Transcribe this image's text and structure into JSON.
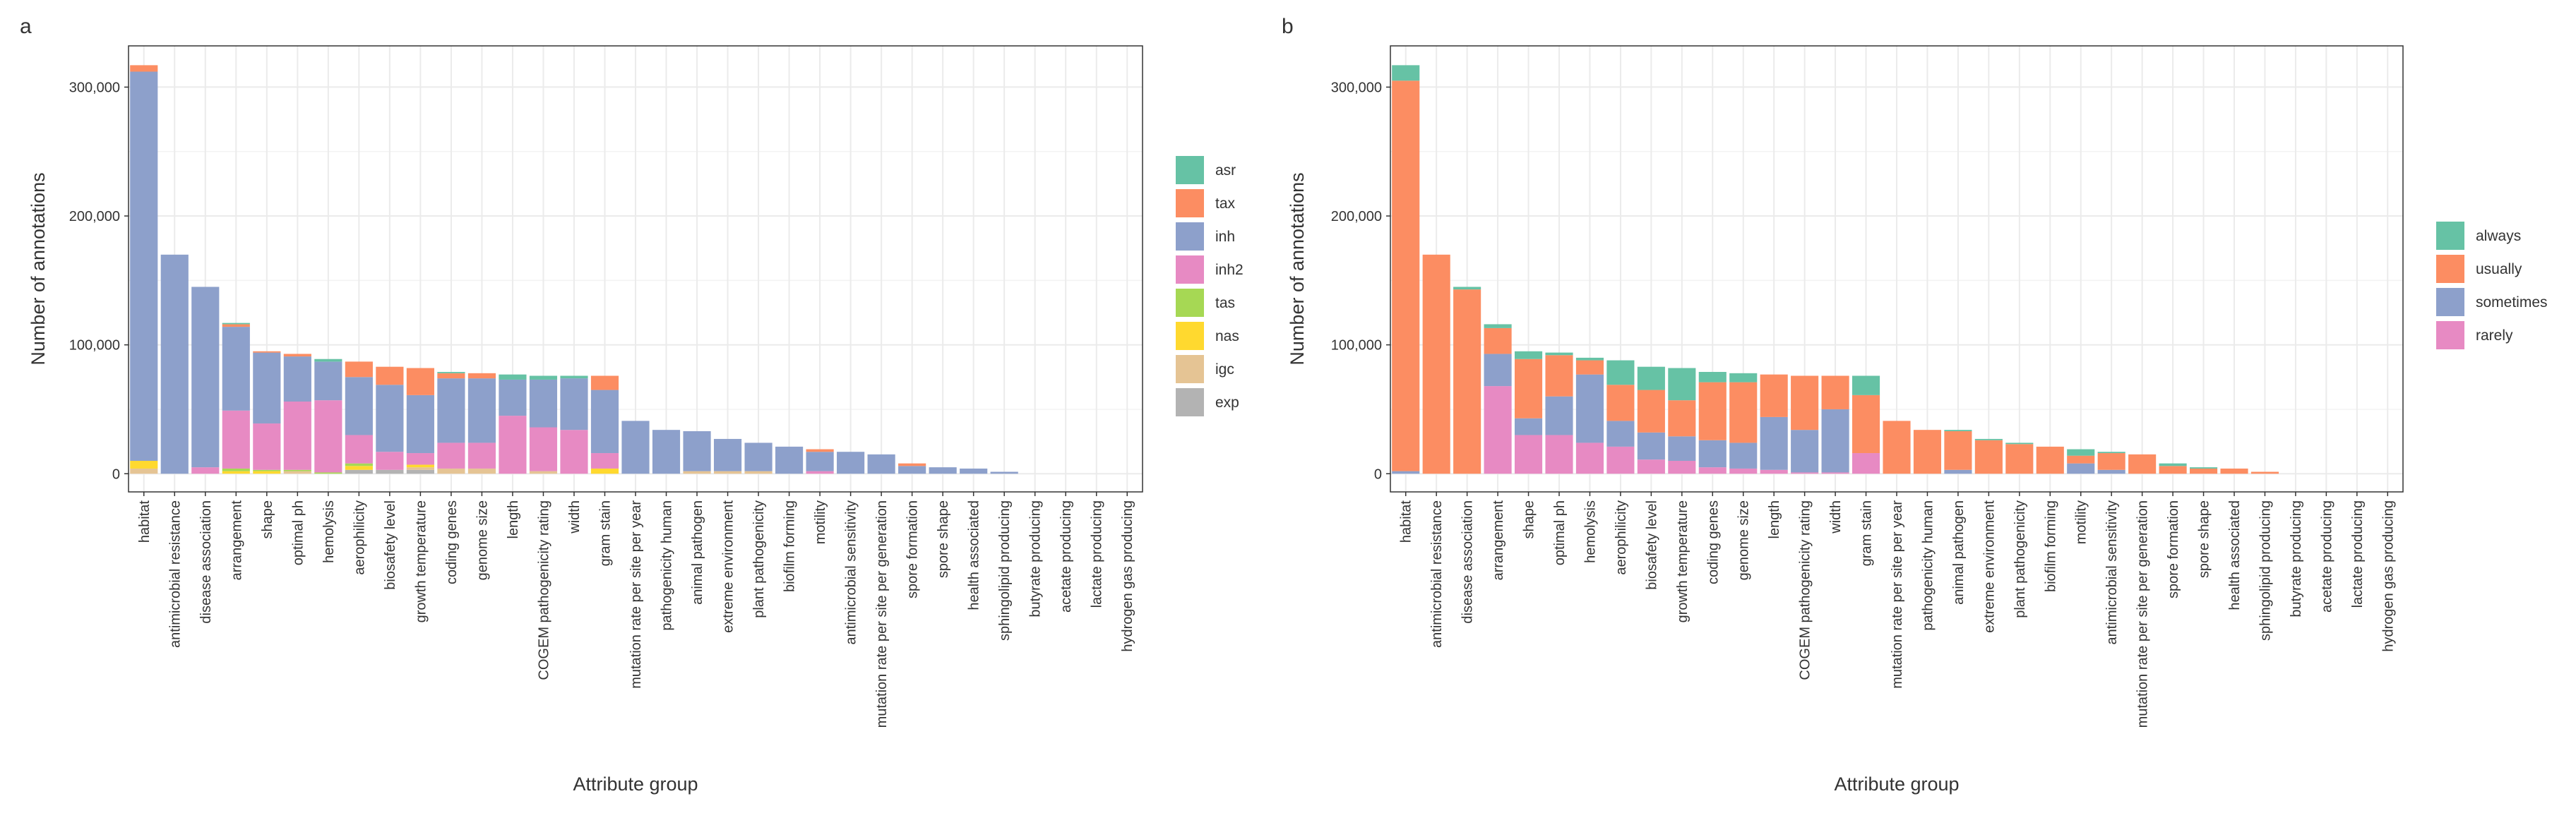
{
  "chart_data": [
    {
      "type": "bar",
      "stacked": true,
      "panel_label": "a",
      "x_label": "Attribute group",
      "y_label": "Number of annotations",
      "categories": [
        "habitat",
        "antimicrobial resistance",
        "disease association",
        "arrangement",
        "shape",
        "optimal ph",
        "hemolysis",
        "aerophilicity",
        "biosafety level",
        "growth temperature",
        "coding genes",
        "genome size",
        "length",
        "COGEM pathogenicity rating",
        "width",
        "gram stain",
        "mutation rate per site per year",
        "pathogenicity human",
        "animal pathogen",
        "extreme environment",
        "plant pathogenicity",
        "biofilm forming",
        "motility",
        "antimicrobial sensitivity",
        "mutation rate per site per generation",
        "spore formation",
        "spore shape",
        "health associated",
        "sphingolipid producing",
        "butyrate producing",
        "acetate producing",
        "lactate producing",
        "hydrogen gas producing"
      ],
      "series": [
        {
          "name": "asr",
          "color": "#66c2a5",
          "values": [
            0,
            0,
            0,
            1000,
            0,
            0,
            2000,
            0,
            0,
            0,
            1000,
            0,
            4000,
            3000,
            2000,
            0,
            0,
            0,
            0,
            0,
            0,
            0,
            0,
            0,
            0,
            0,
            0,
            0,
            0,
            0,
            0,
            0,
            0
          ]
        },
        {
          "name": "tax",
          "color": "#fc8d62",
          "values": [
            5000,
            0,
            0,
            2000,
            1000,
            2000,
            0,
            12000,
            14000,
            21000,
            4000,
            4000,
            0,
            0,
            0,
            11000,
            0,
            0,
            0,
            0,
            0,
            0,
            2000,
            0,
            0,
            2000,
            0,
            0,
            0,
            0,
            0,
            0,
            0
          ]
        },
        {
          "name": "inh",
          "color": "#8da0cb",
          "values": [
            302000,
            170000,
            140000,
            65000,
            55000,
            35000,
            30000,
            45000,
            52000,
            45000,
            50000,
            50000,
            28000,
            37000,
            40000,
            49000,
            41000,
            34000,
            31000,
            25000,
            22000,
            21000,
            15000,
            17000,
            15000,
            6000,
            5000,
            4000,
            1500,
            0,
            0,
            0,
            0
          ]
        },
        {
          "name": "inh2",
          "color": "#e78ac3",
          "values": [
            0,
            0,
            5000,
            45000,
            36000,
            53000,
            56000,
            22000,
            14000,
            9000,
            20000,
            20000,
            45000,
            34000,
            34000,
            12000,
            0,
            0,
            0,
            0,
            0,
            0,
            2000,
            0,
            0,
            0,
            0,
            0,
            0,
            0,
            0,
            0,
            0
          ]
        },
        {
          "name": "tas",
          "color": "#a6d854",
          "values": [
            0,
            0,
            0,
            2000,
            1000,
            1000,
            1000,
            2000,
            0,
            0,
            0,
            0,
            0,
            0,
            0,
            0,
            0,
            0,
            0,
            0,
            0,
            0,
            0,
            0,
            0,
            0,
            0,
            0,
            0,
            0,
            0,
            0,
            0
          ]
        },
        {
          "name": "nas",
          "color": "#ffd92f",
          "values": [
            6000,
            0,
            0,
            2000,
            2000,
            0,
            0,
            3000,
            0,
            2000,
            0,
            0,
            0,
            0,
            0,
            4000,
            0,
            0,
            0,
            0,
            0,
            0,
            0,
            0,
            0,
            0,
            0,
            0,
            0,
            0,
            0,
            0,
            0
          ]
        },
        {
          "name": "igc",
          "color": "#e5c494",
          "values": [
            4000,
            0,
            0,
            0,
            0,
            2000,
            0,
            0,
            0,
            2000,
            4000,
            4000,
            0,
            2000,
            0,
            0,
            0,
            0,
            2000,
            2000,
            2000,
            0,
            0,
            0,
            0,
            0,
            0,
            0,
            0,
            0,
            0,
            0,
            0
          ]
        },
        {
          "name": "exp",
          "color": "#b3b3b3",
          "values": [
            0,
            0,
            0,
            0,
            0,
            0,
            0,
            3000,
            3000,
            3000,
            0,
            0,
            0,
            0,
            0,
            0,
            0,
            0,
            0,
            0,
            0,
            0,
            0,
            0,
            0,
            0,
            0,
            0,
            0,
            0,
            0,
            0,
            0
          ]
        }
      ],
      "ylim": [
        -14100,
        332000
      ],
      "yticks": [
        0,
        {
          "value": 100000,
          "label": "100,000"
        },
        {
          "value": 200000,
          "label": "200,000"
        },
        {
          "value": 300000,
          "label": "300,000"
        }
      ],
      "grid": true,
      "legend": "right"
    },
    {
      "type": "bar",
      "stacked": true,
      "panel_label": "b",
      "x_label": "Attribute group",
      "y_label": "Number of annotations",
      "categories": [
        "habitat",
        "antimicrobial resistance",
        "disease association",
        "arrangement",
        "shape",
        "optimal ph",
        "hemolysis",
        "aerophilicity",
        "biosafety level",
        "growth temperature",
        "coding genes",
        "genome size",
        "length",
        "COGEM pathogenicity rating",
        "width",
        "gram stain",
        "mutation rate per site per year",
        "pathogenicity human",
        "animal pathogen",
        "extreme environment",
        "plant pathogenicity",
        "biofilm forming",
        "motility",
        "antimicrobial sensitivity",
        "mutation rate per site per generation",
        "spore formation",
        "spore shape",
        "health associated",
        "sphingolipid producing",
        "butyrate producing",
        "acetate producing",
        "lactate producing",
        "hydrogen gas producing"
      ],
      "series": [
        {
          "name": "always",
          "color": "#66c2a5",
          "values": [
            12000,
            0,
            2000,
            3000,
            6000,
            2000,
            2000,
            19000,
            18000,
            25000,
            8000,
            7000,
            0,
            0,
            0,
            15000,
            0,
            0,
            1000,
            1000,
            1000,
            0,
            5000,
            1000,
            0,
            2000,
            1000,
            0,
            0,
            0,
            0,
            0,
            0
          ]
        },
        {
          "name": "usually",
          "color": "#fc8d62",
          "values": [
            303000,
            170000,
            143000,
            20000,
            46000,
            32000,
            11000,
            28000,
            33000,
            28000,
            45000,
            47000,
            33000,
            42000,
            26000,
            45000,
            41000,
            34000,
            30000,
            26000,
            23000,
            21000,
            6000,
            13000,
            15000,
            6000,
            4000,
            4000,
            1500,
            0,
            0,
            0,
            0
          ]
        },
        {
          "name": "sometimes",
          "color": "#8da0cb",
          "values": [
            2000,
            0,
            0,
            25000,
            13000,
            30000,
            53000,
            20000,
            21000,
            19000,
            21000,
            20000,
            41000,
            33000,
            49000,
            0,
            0,
            0,
            3000,
            0,
            0,
            0,
            8000,
            3000,
            0,
            0,
            0,
            0,
            0,
            0,
            0,
            0,
            0
          ]
        },
        {
          "name": "rarely",
          "color": "#e78ac3",
          "values": [
            0,
            0,
            0,
            68000,
            30000,
            30000,
            24000,
            21000,
            11000,
            10000,
            5000,
            4000,
            3000,
            1000,
            1000,
            16000,
            0,
            0,
            0,
            0,
            0,
            0,
            0,
            0,
            0,
            0,
            0,
            0,
            0,
            0,
            0,
            0,
            0
          ]
        }
      ],
      "ylim": [
        -14100,
        332000
      ],
      "yticks": [
        0,
        {
          "value": 100000,
          "label": "100,000"
        },
        {
          "value": 200000,
          "label": "200,000"
        },
        {
          "value": 300000,
          "label": "300,000"
        }
      ],
      "grid": true,
      "legend": "right"
    }
  ]
}
